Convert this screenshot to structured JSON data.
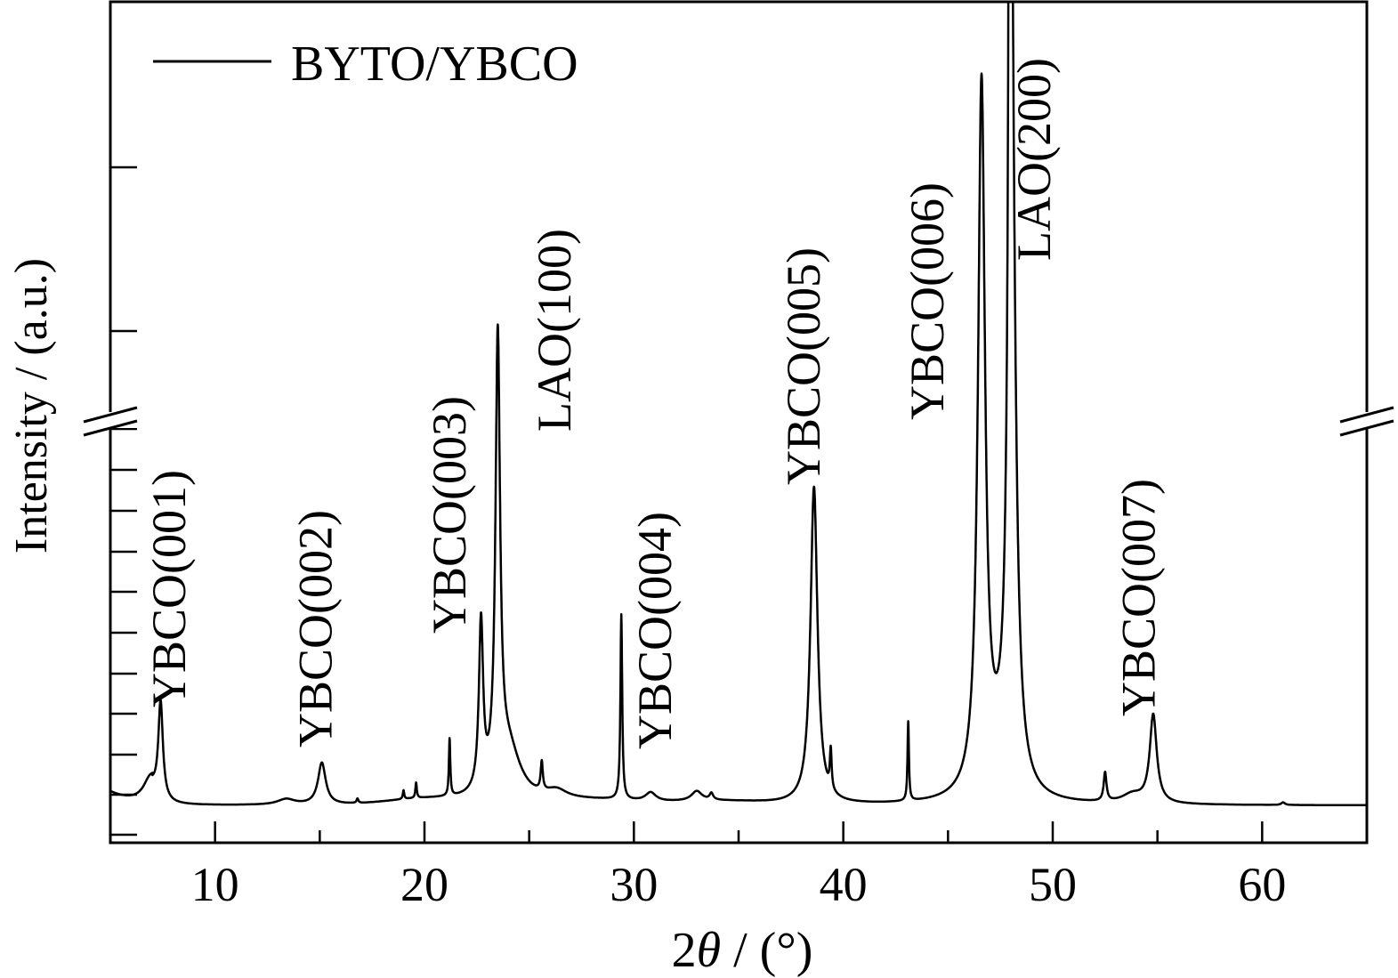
{
  "chart_data": {
    "type": "line",
    "title": "",
    "xlabel_prefix": "2",
    "xlabel_symbol": "θ",
    "xlabel_suffix": " / (°)",
    "ylabel": "Intensity / (a.u.)",
    "xlim": [
      5,
      65
    ],
    "x_ticks": [
      10,
      20,
      30,
      40,
      50,
      60
    ],
    "axis_break": true,
    "grid": false,
    "legend": {
      "position": "top-left",
      "entries": [
        "BYTO/YBCO"
      ]
    },
    "series": [
      {
        "name": "BYTO/YBCO",
        "color": "#000000",
        "background": 0.04,
        "peaks": [
          {
            "x": 6.9,
            "h": 0.05,
            "w": 0.4
          },
          {
            "x": 7.4,
            "h": 0.22,
            "w": 0.13
          },
          {
            "x": 13.4,
            "h": 0.013,
            "w": 0.5
          },
          {
            "x": 15.1,
            "h": 0.095,
            "w": 0.22
          },
          {
            "x": 16.8,
            "h": 0.01,
            "w": 0.05
          },
          {
            "x": 19.0,
            "h": 0.02,
            "w": 0.04
          },
          {
            "x": 19.6,
            "h": 0.035,
            "w": 0.04
          },
          {
            "x": 21.2,
            "h": 0.13,
            "w": 0.04
          },
          {
            "x": 22.7,
            "h": 0.38,
            "w": 0.12
          },
          {
            "x": 23.5,
            "h": 1.0,
            "w": 0.13
          },
          {
            "x": 24.0,
            "h": 0.12,
            "w": 0.7
          },
          {
            "x": 25.6,
            "h": 0.065,
            "w": 0.06
          },
          {
            "x": 26.3,
            "h": 0.02,
            "w": 0.6
          },
          {
            "x": 29.4,
            "h": 0.42,
            "w": 0.05
          },
          {
            "x": 30.8,
            "h": 0.02,
            "w": 0.3
          },
          {
            "x": 33.0,
            "h": 0.022,
            "w": 0.3
          },
          {
            "x": 33.7,
            "h": 0.015,
            "w": 0.1
          },
          {
            "x": 38.6,
            "h": 0.72,
            "w": 0.2
          },
          {
            "x": 39.4,
            "h": 0.09,
            "w": 0.05
          },
          {
            "x": 43.1,
            "h": 0.18,
            "w": 0.04
          },
          {
            "x": 46.6,
            "h": 1.6,
            "w": 0.2
          },
          {
            "x": 47.97,
            "h": 9.0,
            "w": 0.03
          },
          {
            "x": 48.05,
            "h": 1.4,
            "w": 0.22
          },
          {
            "x": 47.3,
            "h": 0.05,
            "w": 0.7
          },
          {
            "x": 52.5,
            "h": 0.065,
            "w": 0.08
          },
          {
            "x": 53.8,
            "h": 0.02,
            "w": 0.6
          },
          {
            "x": 54.8,
            "h": 0.2,
            "w": 0.2
          },
          {
            "x": 61.0,
            "h": 0.006,
            "w": 0.1
          }
        ]
      }
    ],
    "annotations": [
      {
        "text": "YBCO(001)",
        "x": 7.8
      },
      {
        "text": "YBCO(002)",
        "x": 14.8
      },
      {
        "text": "YBCO(003)",
        "x": 21.2
      },
      {
        "text": "LAO(100)",
        "x": 26.2
      },
      {
        "text": "YBCO(004)",
        "x": 31.0
      },
      {
        "text": "YBCO(005)",
        "x": 38.1
      },
      {
        "text": "YBCO(006)",
        "x": 44.0
      },
      {
        "text": "LAO(200)",
        "x": 49.1
      },
      {
        "text": "YBCO(007)",
        "x": 54.1
      }
    ]
  }
}
